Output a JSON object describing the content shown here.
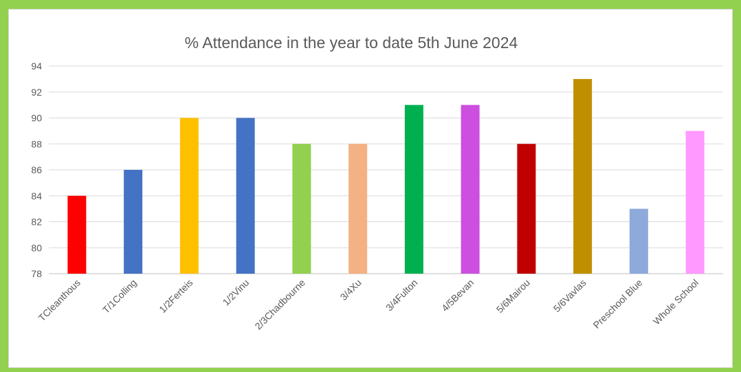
{
  "chart_data": {
    "type": "bar",
    "title": "% Attendance in the year to date 5th June 2024",
    "categories": [
      "TCleanthous",
      "T/1Colling",
      "1/2Ferteis",
      "1/2Vinu",
      "2/3Chadbourne",
      "3/4Xu",
      "3/4Fulton",
      "4/5Bevan",
      "5/6Mairou",
      "5/6Vavlas",
      "Preschool Blue",
      "Whole School"
    ],
    "values": [
      84,
      86,
      90,
      90,
      88,
      88,
      91,
      91,
      88,
      93,
      83,
      89
    ],
    "colors": [
      "#ff0000",
      "#4472c4",
      "#ffc000",
      "#4472c4",
      "#92d050",
      "#f4b183",
      "#00b050",
      "#cc4fe0",
      "#c00000",
      "#bf8f00",
      "#8eaadb",
      "#ff99ff"
    ],
    "ylim": [
      78,
      94
    ],
    "yticks": [
      78,
      80,
      82,
      84,
      86,
      88,
      90,
      92,
      94
    ],
    "grid": true,
    "xlabel": "",
    "ylabel": ""
  }
}
